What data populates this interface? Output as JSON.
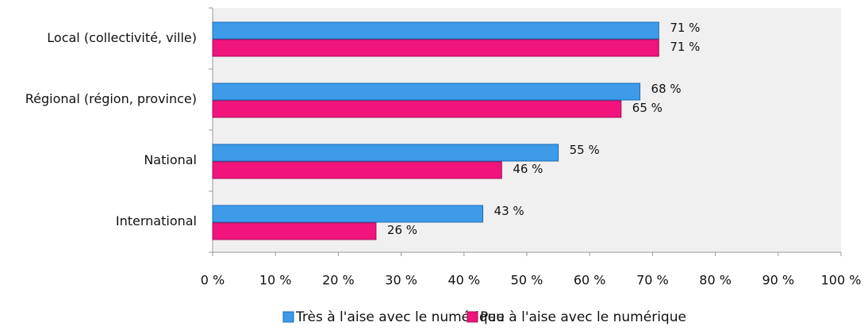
{
  "chart_data": {
    "type": "bar",
    "orientation": "horizontal",
    "categories": [
      "Local (collectivité, ville)",
      "Régional (région, province)",
      "National",
      "International"
    ],
    "series": [
      {
        "name": "Très à l'aise avec le numérique",
        "color": "#3d9be9",
        "values": [
          71,
          68,
          55,
          43
        ],
        "value_labels": [
          "71 %",
          "68 %",
          "55 %",
          "43 %"
        ]
      },
      {
        "name": "Peu à l'aise avec le numérique",
        "color": "#f0147c",
        "values": [
          71,
          65,
          46,
          26
        ],
        "value_labels": [
          "71 %",
          "65 %",
          "46 %",
          "26 %"
        ]
      }
    ],
    "xlim": [
      0,
      100
    ],
    "xticks": [
      {
        "value": 0,
        "label": "0 %"
      },
      {
        "value": 10,
        "label": "10 %"
      },
      {
        "value": 20,
        "label": "20 %"
      },
      {
        "value": 30,
        "label": "30 %"
      },
      {
        "value": 40,
        "label": "40 %"
      },
      {
        "value": 50,
        "label": "50 %"
      },
      {
        "value": 60,
        "label": "60 %"
      },
      {
        "value": 70,
        "label": "70 %"
      },
      {
        "value": 80,
        "label": "80 %"
      },
      {
        "value": 90,
        "label": "90 %"
      },
      {
        "value": 100,
        "label": "100 %"
      }
    ],
    "legend": "bottom"
  }
}
